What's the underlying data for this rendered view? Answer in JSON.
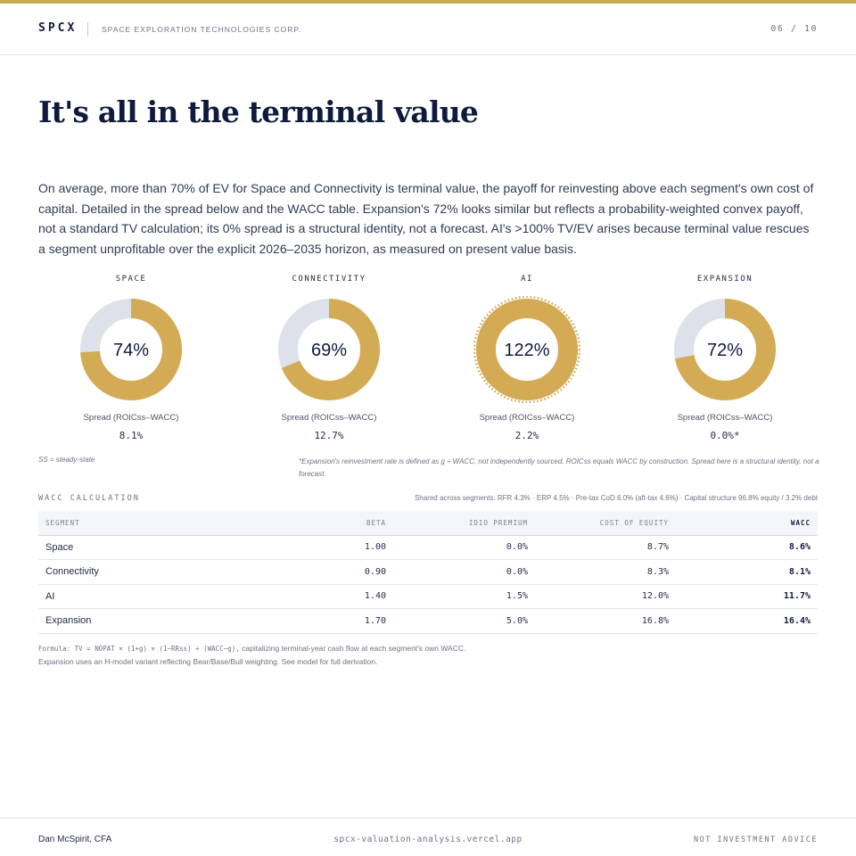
{
  "header": {
    "brand": "SPCX",
    "company": "SPACE EXPLORATION TECHNOLOGIES CORP.",
    "page_indicator": "06 / 10"
  },
  "title": "It's all in the terminal value",
  "intro": "On average, more than 70% of EV for Space and Connectivity is terminal value, the payoff for reinvesting above each segment's own cost of capital. Detailed in the spread below and the WACC table. Expansion's 72% looks similar but reflects a probability-weighted convex payoff, not a standard TV calculation; its 0% spread is a structural identity, not a forecast. AI's >100% TV/EV arises because terminal value rescues a segment unprofitable over the explicit 2026–2035 horizon, as measured on present value basis.",
  "colors": {
    "accent": "#d4ab55",
    "track": "#dde2ea",
    "navy": "#0f1b3d"
  },
  "donuts": [
    {
      "label": "SPACE",
      "pct_text": "74%",
      "value": 74,
      "spread_label": "Spread (ROICss–WACC)",
      "spread": "8.1%"
    },
    {
      "label": "CONNECTIVITY",
      "pct_text": "69%",
      "value": 69,
      "spread_label": "Spread (ROICss–WACC)",
      "spread": "12.7%"
    },
    {
      "label": "AI",
      "pct_text": "122%",
      "value": 122,
      "spread_label": "Spread (ROICss–WACC)",
      "spread": "2.2%"
    },
    {
      "label": "EXPANSION",
      "pct_text": "72%",
      "value": 72,
      "spread_label": "Spread (ROICss–WACC)",
      "spread": "0.0%*"
    }
  ],
  "notes": {
    "ss": "SS = steady-state",
    "expansion": "*Expansion's reinvestment rate is defined as g ÷ WACC, not independently sourced. ROICss equals WACC by construction. Spread here is a structural identity, not a forecast."
  },
  "wacc": {
    "title": "WACC CALCULATION",
    "shared": "Shared across segments: RFR 4.3% · ERP 4.5% · Pre-tax CoD 6.0% (aft-tax 4.6%) · Capital structure 96.8% equity / 3.2% debt",
    "columns": [
      "SEGMENT",
      "BETA",
      "IDIO PREMIUM",
      "COST OF EQUITY",
      "WACC"
    ],
    "rows": [
      [
        "Space",
        "1.00",
        "0.0%",
        "8.7%",
        "8.6%"
      ],
      [
        "Connectivity",
        "0.90",
        "0.0%",
        "8.3%",
        "8.1%"
      ],
      [
        "AI",
        "1.40",
        "1.5%",
        "12.0%",
        "11.7%"
      ],
      [
        "Expansion",
        "1.70",
        "5.0%",
        "16.8%",
        "16.4%"
      ]
    ]
  },
  "formula": {
    "line1_mono": "Formula: TV = NOPAT × (1+g) × (1−RRss) ÷ (WACC−g),",
    "line1_rest": " capitalizing terminal-year cash flow at each segment's own WACC.",
    "line2": "Expansion uses an H-model variant reflecting Bear/Base/Bull weighting. See model for full derivation."
  },
  "footer": {
    "author": "Dan McSpirit, CFA",
    "site": "spcx-valuation-analysis.vercel.app",
    "disclaimer": "NOT INVESTMENT ADVICE"
  }
}
